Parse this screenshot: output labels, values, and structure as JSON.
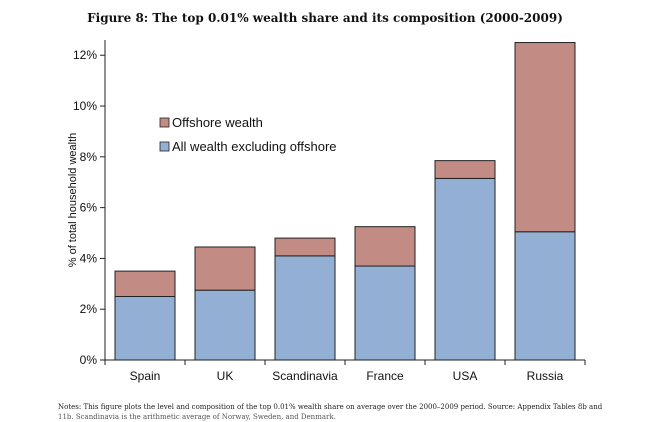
{
  "figure_title": "Figure 8: The top 0.01% wealth share and its composition (2000-2009)",
  "notes": {
    "line1": "Notes: This figure plots the level and composition of the top 0.01% wealth share on average over the 2000–2009 period. Source: Appendix Tables 8b and",
    "line2": "11b. Scandinavia is the arithmetic average of Norway, Sweden, and Denmark."
  },
  "colors": {
    "offshore": "#c28b84",
    "excluding_offshore": "#93afd4",
    "bar_stroke": "#222222",
    "axis": "#222222"
  },
  "chart_data": {
    "type": "bar",
    "stacked": true,
    "categories": [
      "Spain",
      "UK",
      "Scandinavia",
      "France",
      "USA",
      "Russia"
    ],
    "series": [
      {
        "name": "All wealth excluding offshore",
        "color_key": "excluding_offshore",
        "values": [
          2.5,
          2.75,
          4.1,
          3.7,
          7.15,
          5.05
        ]
      },
      {
        "name": "Offshore wealth",
        "color_key": "offshore",
        "values": [
          1.0,
          1.7,
          0.7,
          1.55,
          0.7,
          7.45
        ]
      }
    ],
    "ylabel": "% of total household wealth",
    "ylim": [
      0,
      12.6
    ],
    "yticks": [
      0,
      2,
      4,
      6,
      8,
      10,
      12
    ],
    "ytick_labels": [
      "0%",
      "2%",
      "4%",
      "6%",
      "8%",
      "10%",
      "12%"
    ],
    "grid": false,
    "legend": {
      "placement": "upper-left",
      "entries": [
        "Offshore wealth",
        "All wealth excluding offshore"
      ]
    }
  }
}
